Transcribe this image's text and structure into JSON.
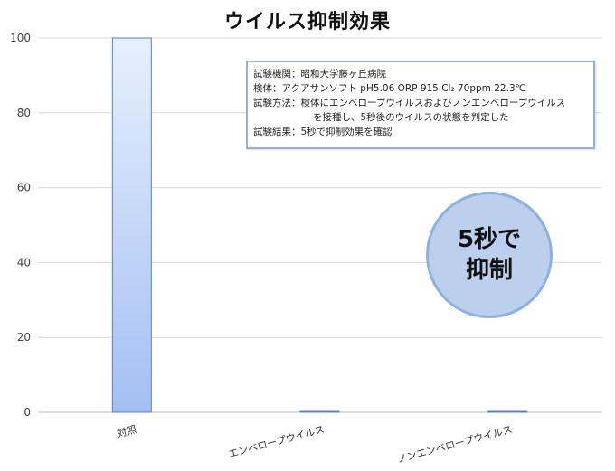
{
  "chart_data": {
    "type": "bar",
    "title": "ウイルス抑制効果",
    "categories": [
      "対照",
      "エンベロープウイルス",
      "ノンエンベロープウイルス"
    ],
    "values": [
      100,
      0,
      0
    ],
    "ylim": [
      0,
      100
    ],
    "yticks": [
      "0",
      "20",
      "40",
      "60",
      "80",
      "100"
    ],
    "grid": true,
    "bar_color_top": "#e6effd",
    "bar_color_bottom": "#a3bff3",
    "bar_border": "#5b7fc4",
    "info_lines": [
      "試験機関：昭和大学藤ヶ丘病院",
      "検体：アクアサンソフト pH5.06 ORP 915 Cl₂ 70ppm 22.3℃",
      "試験方法：検体にエンベロープウイルスおよびノンエンベロープウイルス",
      "を接種し、5秒後のウイルスの状態を判定した",
      "試験結果：5秒で抑制効果を確認"
    ],
    "badge_line1": "5秒で",
    "badge_line2": "抑制"
  }
}
